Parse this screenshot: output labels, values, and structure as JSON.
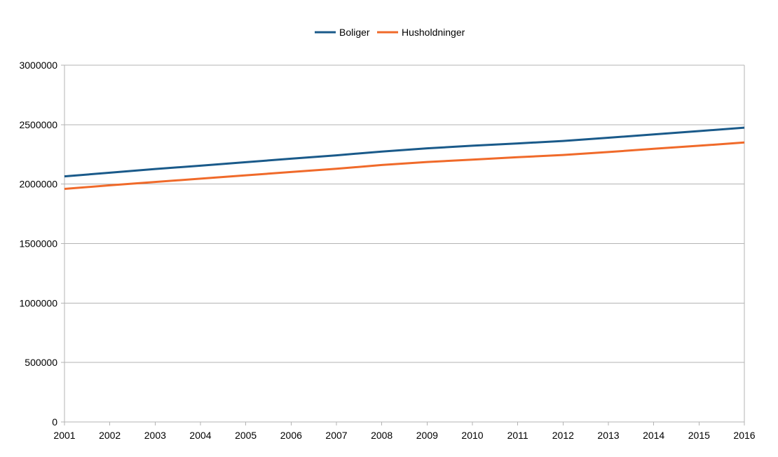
{
  "chart_data": {
    "type": "line",
    "title": "",
    "xlabel": "",
    "ylabel": "",
    "x": [
      "2001",
      "2002",
      "2003",
      "2004",
      "2005",
      "2006",
      "2007",
      "2008",
      "2009",
      "2010",
      "2011",
      "2012",
      "2013",
      "2014",
      "2015",
      "2016"
    ],
    "y_ticks": [
      "0",
      "500000",
      "1000000",
      "1500000",
      "2000000",
      "2500000",
      "3000000"
    ],
    "ylim": [
      0,
      3000000
    ],
    "grid": true,
    "legend_position": "top",
    "series": [
      {
        "name": "Boliger",
        "color": "#1a5a8a",
        "values": [
          2065000,
          2096000,
          2127000,
          2155000,
          2184000,
          2214000,
          2242000,
          2274000,
          2301000,
          2323000,
          2342000,
          2363000,
          2390000,
          2418000,
          2446000,
          2475000
        ]
      },
      {
        "name": "Husholdninger",
        "color": "#f06a2a",
        "values": [
          1960000,
          1990000,
          2018000,
          2046000,
          2074000,
          2102000,
          2129000,
          2161000,
          2186000,
          2206000,
          2226000,
          2245000,
          2270000,
          2297000,
          2323000,
          2350000
        ]
      }
    ]
  }
}
